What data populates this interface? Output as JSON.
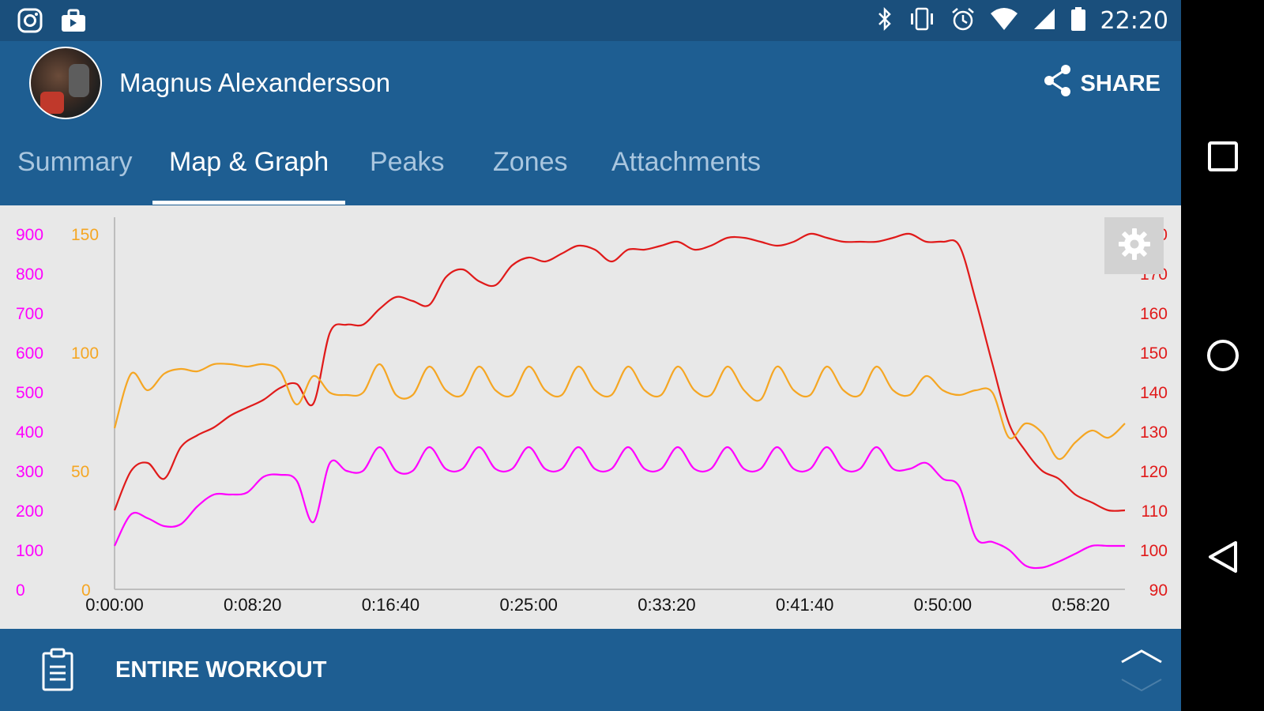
{
  "status_bar": {
    "time": "22:20",
    "left_icons": [
      "instagram-icon",
      "briefcase-icon"
    ],
    "right_icons": [
      "bluetooth-icon",
      "vibrate-icon",
      "alarm-icon",
      "wifi-icon",
      "signal-icon",
      "battery-icon"
    ]
  },
  "header": {
    "user_name": "Magnus Alexandersson",
    "share_label": "SHARE"
  },
  "tabs": [
    {
      "label": "Summary",
      "active": false
    },
    {
      "label": "Map & Graph",
      "active": true
    },
    {
      "label": "Peaks",
      "active": false
    },
    {
      "label": "Zones",
      "active": false
    },
    {
      "label": "Attachments",
      "active": false
    }
  ],
  "bottom_bar": {
    "label": "ENTIRE WORKOUT"
  },
  "colors": {
    "appbar": "#1e5e92",
    "statusbar": "#1a4f7c",
    "chart_bg": "#e8e8e8",
    "power": "#ff00ff",
    "cadence": "#f5a623",
    "heart_rate": "#e01a1a"
  },
  "chart_data": {
    "type": "line",
    "x_tick_labels": [
      "0:00:00",
      "0:08:20",
      "0:16:40",
      "0:25:00",
      "0:33:20",
      "0:41:40",
      "0:50:00",
      "0:58:20"
    ],
    "xlim": [
      0,
      3660
    ],
    "axes": {
      "power": {
        "ticks": [
          "0",
          "100",
          "200",
          "300",
          "400",
          "500",
          "600",
          "700",
          "800",
          "900"
        ],
        "ylim": [
          0,
          900
        ]
      },
      "cadence": {
        "ticks": [
          "0",
          "50",
          "100",
          "150"
        ],
        "ylim": [
          0,
          150
        ]
      },
      "heart_rate": {
        "ticks": [
          "90",
          "100",
          "110",
          "120",
          "130",
          "140",
          "150",
          "160",
          "170",
          "180"
        ],
        "ylim": [
          90,
          180
        ]
      }
    },
    "series": [
      {
        "axis": "heart_rate",
        "color": "#e01a1a",
        "x": [
          0,
          60,
          120,
          180,
          240,
          300,
          360,
          420,
          480,
          540,
          600,
          660,
          720,
          780,
          840,
          900,
          960,
          1020,
          1080,
          1140,
          1200,
          1260,
          1320,
          1380,
          1440,
          1500,
          1560,
          1620,
          1680,
          1740,
          1800,
          1860,
          1920,
          1980,
          2040,
          2100,
          2160,
          2220,
          2280,
          2340,
          2400,
          2460,
          2520,
          2580,
          2640,
          2700,
          2760,
          2820,
          2880,
          2940,
          3000,
          3060,
          3120,
          3180,
          3240,
          3300,
          3360,
          3420,
          3480,
          3540,
          3600,
          3660
        ],
        "y": [
          110,
          120,
          122,
          118,
          126,
          129,
          131,
          134,
          136,
          138,
          141,
          142,
          137,
          155,
          157,
          157,
          161,
          164,
          163,
          162,
          169,
          171,
          168,
          167,
          172,
          174,
          173,
          175,
          177,
          176,
          173,
          176,
          176,
          177,
          178,
          176,
          177,
          179,
          179,
          178,
          177,
          178,
          180,
          179,
          178,
          178,
          178,
          179,
          180,
          178,
          178,
          177,
          163,
          147,
          132,
          125,
          120,
          118,
          114,
          112,
          110,
          110
        ]
      },
      {
        "axis": "cadence",
        "color": "#f5a623",
        "x": [
          0,
          60,
          120,
          180,
          240,
          300,
          360,
          420,
          480,
          540,
          600,
          660,
          720,
          780,
          840,
          900,
          960,
          1020,
          1080,
          1140,
          1200,
          1260,
          1320,
          1380,
          1440,
          1500,
          1560,
          1620,
          1680,
          1740,
          1800,
          1860,
          1920,
          1980,
          2040,
          2100,
          2160,
          2220,
          2280,
          2340,
          2400,
          2460,
          2520,
          2580,
          2640,
          2700,
          2760,
          2820,
          2880,
          2940,
          3000,
          3060,
          3120,
          3180,
          3240,
          3300,
          3360,
          3420,
          3480,
          3540,
          3600,
          3660
        ],
        "y": [
          68,
          91,
          84,
          91,
          93,
          92,
          95,
          95,
          94,
          95,
          92,
          78,
          90,
          83,
          82,
          83,
          95,
          82,
          82,
          94,
          84,
          82,
          94,
          84,
          82,
          94,
          84,
          82,
          94,
          84,
          82,
          94,
          84,
          82,
          94,
          84,
          82,
          94,
          84,
          80,
          94,
          84,
          82,
          94,
          84,
          82,
          94,
          84,
          82,
          90,
          84,
          82,
          84,
          83,
          64,
          70,
          66,
          55,
          62,
          67,
          64,
          70
        ]
      },
      {
        "axis": "power",
        "color": "#ff00ff",
        "x": [
          0,
          60,
          120,
          180,
          240,
          300,
          360,
          420,
          480,
          540,
          600,
          660,
          720,
          780,
          840,
          900,
          960,
          1020,
          1080,
          1140,
          1200,
          1260,
          1320,
          1380,
          1440,
          1500,
          1560,
          1620,
          1680,
          1740,
          1800,
          1860,
          1920,
          1980,
          2040,
          2100,
          2160,
          2220,
          2280,
          2340,
          2400,
          2460,
          2520,
          2580,
          2640,
          2700,
          2760,
          2820,
          2880,
          2940,
          3000,
          3060,
          3120,
          3180,
          3240,
          3300,
          3360,
          3420,
          3480,
          3540,
          3600,
          3660
        ],
        "y": [
          110,
          190,
          180,
          160,
          165,
          210,
          240,
          240,
          245,
          285,
          290,
          275,
          170,
          320,
          300,
          300,
          360,
          300,
          300,
          360,
          305,
          305,
          360,
          305,
          305,
          360,
          305,
          305,
          360,
          305,
          305,
          360,
          305,
          305,
          360,
          305,
          305,
          360,
          305,
          305,
          360,
          305,
          305,
          360,
          305,
          305,
          360,
          305,
          305,
          320,
          280,
          260,
          130,
          120,
          100,
          60,
          55,
          70,
          90,
          110,
          110,
          110
        ]
      }
    ]
  }
}
